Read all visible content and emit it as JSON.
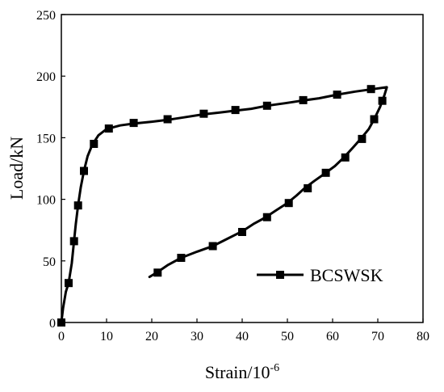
{
  "chart_data": {
    "type": "line",
    "xlabel": "Strain/10",
    "xlabel_exponent": "-6",
    "ylabel": "Load/kN",
    "xlim": [
      0,
      80
    ],
    "ylim": [
      0,
      250
    ],
    "xticks": [
      0,
      10,
      20,
      30,
      40,
      50,
      60,
      70,
      80
    ],
    "yticks": [
      0,
      50,
      100,
      150,
      200,
      250
    ],
    "grid": false,
    "legend_position": "bottom-right",
    "series": [
      {
        "name": "BCSWSK",
        "color": "#000000",
        "marker": "square",
        "line_points": [
          [
            0,
            0
          ],
          [
            0.4,
            12
          ],
          [
            1,
            25
          ],
          [
            1.6,
            32
          ],
          [
            2.3,
            48
          ],
          [
            2.8,
            66
          ],
          [
            3.2,
            80
          ],
          [
            3.7,
            95
          ],
          [
            4.3,
            110
          ],
          [
            5.0,
            123
          ],
          [
            5.8,
            135
          ],
          [
            6.8,
            144
          ],
          [
            8.2,
            152
          ],
          [
            10,
            157
          ],
          [
            13,
            160
          ],
          [
            16,
            161.5
          ],
          [
            20,
            163
          ],
          [
            23.5,
            164.5
          ],
          [
            27,
            166.5
          ],
          [
            31.5,
            169
          ],
          [
            35,
            170.5
          ],
          [
            38.5,
            172
          ],
          [
            42,
            173.5
          ],
          [
            45.5,
            176
          ],
          [
            49.5,
            178
          ],
          [
            53,
            180
          ],
          [
            57,
            182
          ],
          [
            61,
            185
          ],
          [
            65,
            187.5
          ],
          [
            69,
            189.5
          ],
          [
            72,
            191
          ],
          [
            71.5,
            185
          ],
          [
            71,
            180
          ],
          [
            70.5,
            175
          ],
          [
            69.2,
            165
          ],
          [
            68,
            157
          ],
          [
            66.2,
            149
          ],
          [
            64.5,
            142
          ],
          [
            62.5,
            134
          ],
          [
            60.5,
            127
          ],
          [
            58.3,
            121
          ],
          [
            56,
            115
          ],
          [
            53.8,
            109
          ],
          [
            52,
            103
          ],
          [
            50,
            97
          ],
          [
            47.5,
            91
          ],
          [
            45,
            85
          ],
          [
            42.5,
            80
          ],
          [
            40,
            74
          ],
          [
            37,
            68.5
          ],
          [
            33.5,
            62
          ],
          [
            30,
            57.5
          ],
          [
            26.5,
            52.5
          ],
          [
            23.5,
            46.5
          ],
          [
            21.3,
            41
          ],
          [
            19.5,
            37
          ]
        ],
        "markers": [
          [
            0,
            0
          ],
          [
            1.6,
            32
          ],
          [
            2.8,
            66
          ],
          [
            3.7,
            95
          ],
          [
            5.0,
            123
          ],
          [
            7.2,
            145
          ],
          [
            10.5,
            157.5
          ],
          [
            16,
            162
          ],
          [
            23.5,
            165
          ],
          [
            31.5,
            169.5
          ],
          [
            38.5,
            172.5
          ],
          [
            45.5,
            176
          ],
          [
            53.5,
            180.5
          ],
          [
            61,
            185
          ],
          [
            68.5,
            189.5
          ],
          [
            71,
            180
          ],
          [
            69.2,
            165
          ],
          [
            66.5,
            149
          ],
          [
            62.8,
            134
          ],
          [
            58.5,
            121.5
          ],
          [
            54.5,
            109
          ],
          [
            50.3,
            97
          ],
          [
            45.5,
            85.5
          ],
          [
            40,
            73.5
          ],
          [
            33.5,
            62
          ],
          [
            26.5,
            52.5
          ],
          [
            21.3,
            40.5
          ]
        ]
      }
    ]
  }
}
